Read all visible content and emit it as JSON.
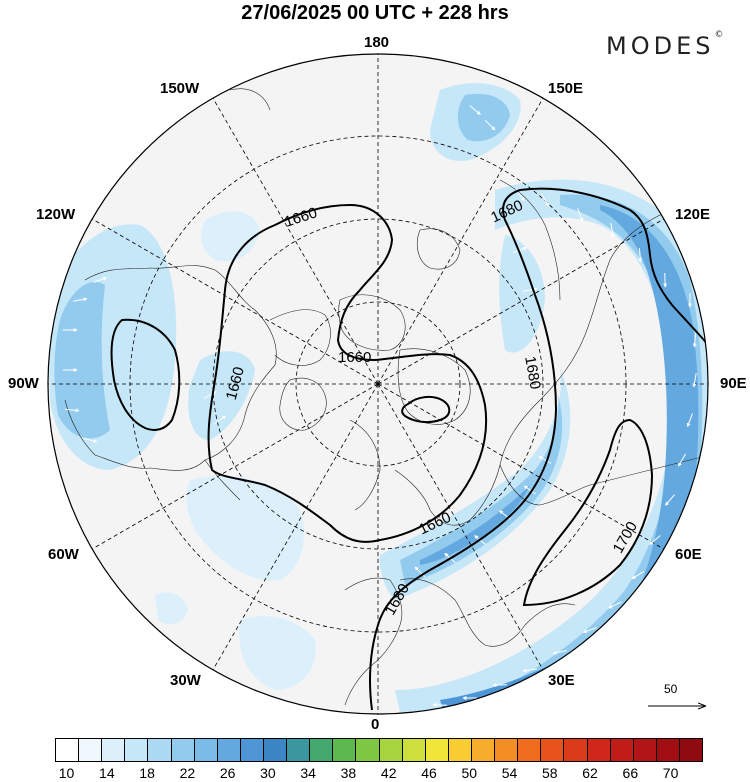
{
  "title": "27/06/2025  00 UTC  + 228 hrs",
  "brand": "MODES",
  "brand_mark": "©",
  "longitude_labels": [
    {
      "text": "180",
      "dir": "top"
    },
    {
      "text": "150E",
      "dir": "tr1"
    },
    {
      "text": "120E",
      "dir": "tr2"
    },
    {
      "text": "90E",
      "dir": "right"
    },
    {
      "text": "60E",
      "dir": "br2"
    },
    {
      "text": "30E",
      "dir": "br1"
    },
    {
      "text": "0",
      "dir": "bottom"
    },
    {
      "text": "30W",
      "dir": "bl1"
    },
    {
      "text": "60W",
      "dir": "bl2"
    },
    {
      "text": "90W",
      "dir": "left"
    },
    {
      "text": "120W",
      "dir": "tl2"
    },
    {
      "text": "150W",
      "dir": "tl1"
    }
  ],
  "contour_labels": [
    "1660",
    "1680",
    "1660",
    "1660",
    "1680",
    "1660",
    "1680",
    "1700"
  ],
  "vector_reference": {
    "value": "50",
    "icon": "arrow-right-icon"
  },
  "colorbar": {
    "labels": [
      "10",
      "14",
      "18",
      "22",
      "26",
      "30",
      "34",
      "38",
      "42",
      "46",
      "50",
      "54",
      "58",
      "62",
      "66",
      "70"
    ],
    "colors": [
      "#ffffff",
      "#eef8fd",
      "#dcf0fb",
      "#c6e7f8",
      "#acdaf4",
      "#93cbef",
      "#7abbe8",
      "#63a9e0",
      "#4f96d6",
      "#3c86c6",
      "#3a97a0",
      "#45a86f",
      "#5cb94e",
      "#7ec844",
      "#a6d33e",
      "#cddf3c",
      "#f2e53a",
      "#f7cd33",
      "#f7ad2b",
      "#f58d25",
      "#f06d20",
      "#e7521d",
      "#db3a1b",
      "#cf281a",
      "#c11d18",
      "#b21515",
      "#a10f12",
      "#8f0b0f"
    ]
  },
  "colors": {
    "land": "#f4f4f4",
    "jet_light": "#c6e7f8",
    "jet_mid": "#93cbef",
    "jet_dark": "#4f96d6",
    "graticule": "#000000",
    "contour": "#000000"
  }
}
